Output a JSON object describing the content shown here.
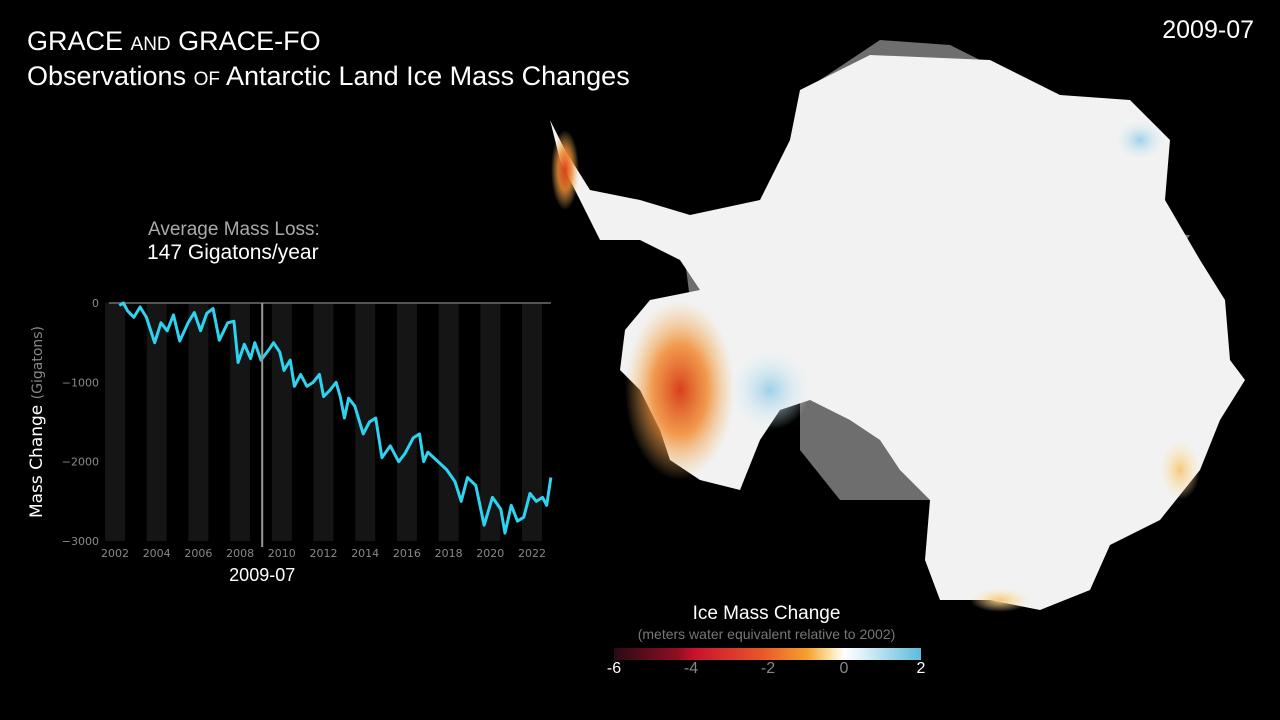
{
  "title": {
    "line1": [
      {
        "text": "GRACE ",
        "sc": false
      },
      {
        "text": "and",
        "sc": true
      },
      {
        "text": " GRACE-FO",
        "sc": false
      }
    ],
    "line2": [
      {
        "text": "Observations ",
        "sc": false
      },
      {
        "text": "of",
        "sc": true
      },
      {
        "text": " Antarctic Land Ice Mass Changes",
        "sc": false
      }
    ]
  },
  "current_date": "2009-07",
  "average": {
    "label": "Average Mass Loss:",
    "value": "147 Gigatons/year"
  },
  "colorbar": {
    "title": "Ice Mass Change",
    "subtitle": "(meters water equivalent relative to 2002)",
    "ticks": [
      "-6",
      "-4",
      "-2",
      "0",
      "2"
    ],
    "range": [
      -6,
      2
    ],
    "colors": {
      "low": "#2a0a14",
      "mid_neg": "#e8562a",
      "zero": "#ffffff",
      "high": "#5cbcdc"
    }
  },
  "chart_data": {
    "type": "line",
    "ylabel": "Mass Change",
    "ylabel_unit": "(Gigatons)",
    "xlim": [
      2001.8,
      2023.0
    ],
    "ylim": [
      -3000,
      100
    ],
    "yticks": [
      0,
      -1000,
      -2000,
      -3000
    ],
    "ytick_labels": [
      "0",
      "−1000",
      "−2000",
      "−3000"
    ],
    "xticks": [
      2002,
      2004,
      2006,
      2008,
      2010,
      2012,
      2014,
      2016,
      2018,
      2020,
      2022
    ],
    "xtick_labels": [
      "2002",
      "2004",
      "2006",
      "2008",
      "2010",
      "2012",
      "2014",
      "2016",
      "2018",
      "2020",
      "2022"
    ],
    "marker": {
      "x": 2009.54,
      "label": "2009-07"
    },
    "line_color": "#2ed3f0",
    "gap_color": "#777777",
    "x": [
      2002.3,
      2002.5,
      2002.7,
      2003.0,
      2003.3,
      2003.6,
      2004.0,
      2004.3,
      2004.6,
      2004.9,
      2005.2,
      2005.6,
      2005.9,
      2006.2,
      2006.5,
      2006.8,
      2007.1,
      2007.5,
      2007.8,
      2008.0,
      2008.3,
      2008.6,
      2008.8,
      2009.1,
      2009.5,
      2009.7,
      2010.0,
      2010.2,
      2010.5,
      2010.7,
      2011.0,
      2011.3,
      2011.6,
      2011.9,
      2012.1,
      2012.4,
      2012.7,
      2012.9,
      2013.1,
      2013.3,
      2013.6,
      2014.0,
      2014.3,
      2014.6,
      2014.9,
      2015.3,
      2015.7,
      2016.0,
      2016.4,
      2016.7,
      2016.9,
      2017.1,
      2018.0,
      2018.4,
      2018.7,
      2019.0,
      2019.4,
      2019.8,
      2020.2,
      2020.6,
      2020.8,
      2021.1,
      2021.4,
      2021.7,
      2022.0,
      2022.3,
      2022.6,
      2022.8,
      2023.0
    ],
    "y": [
      -30,
      0,
      -100,
      -180,
      -50,
      -180,
      -500,
      -250,
      -350,
      -150,
      -480,
      -250,
      -120,
      -350,
      -130,
      -70,
      -470,
      -250,
      -230,
      -750,
      -520,
      -700,
      -500,
      -720,
      -580,
      -500,
      -620,
      -850,
      -720,
      -1050,
      -900,
      -1050,
      -1000,
      -900,
      -1180,
      -1100,
      -1000,
      -1180,
      -1450,
      -1200,
      -1300,
      -1650,
      -1500,
      -1450,
      -1950,
      -1800,
      -2000,
      -1900,
      -1700,
      -1650,
      -2000,
      -1880,
      -2100,
      -2250,
      -2500,
      -2200,
      -2300,
      -2800,
      -2450,
      -2600,
      -2900,
      -2550,
      -2750,
      -2700,
      -2400,
      -2500,
      -2450,
      -2550,
      -2200
    ]
  }
}
